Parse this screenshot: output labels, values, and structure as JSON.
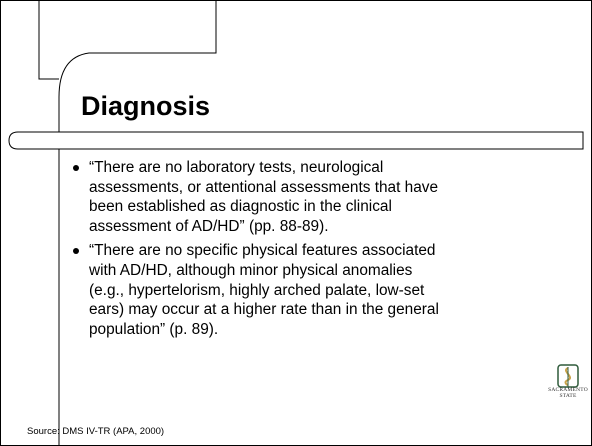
{
  "slide": {
    "title": "Diagnosis",
    "bullets": [
      [
        "“There are no laboratory tests, neurological",
        "assessments, or attentional assessments that have",
        "been established as diagnostic in the clinical",
        "assessment of AD/HD” (pp. 88-89)."
      ],
      [
        "“There are no specific physical features associated",
        "with AD/HD, although minor physical anomalies",
        "(e.g., hypertelorism, highly arched palate, low-set",
        "ears) may occur at a higher rate than in the general",
        "population” (p. 89)."
      ]
    ],
    "source": "Source: DMS IV-TR (APA, 2000)",
    "logo": {
      "line1": "SACRAMENTO",
      "line2": "STATE"
    }
  }
}
